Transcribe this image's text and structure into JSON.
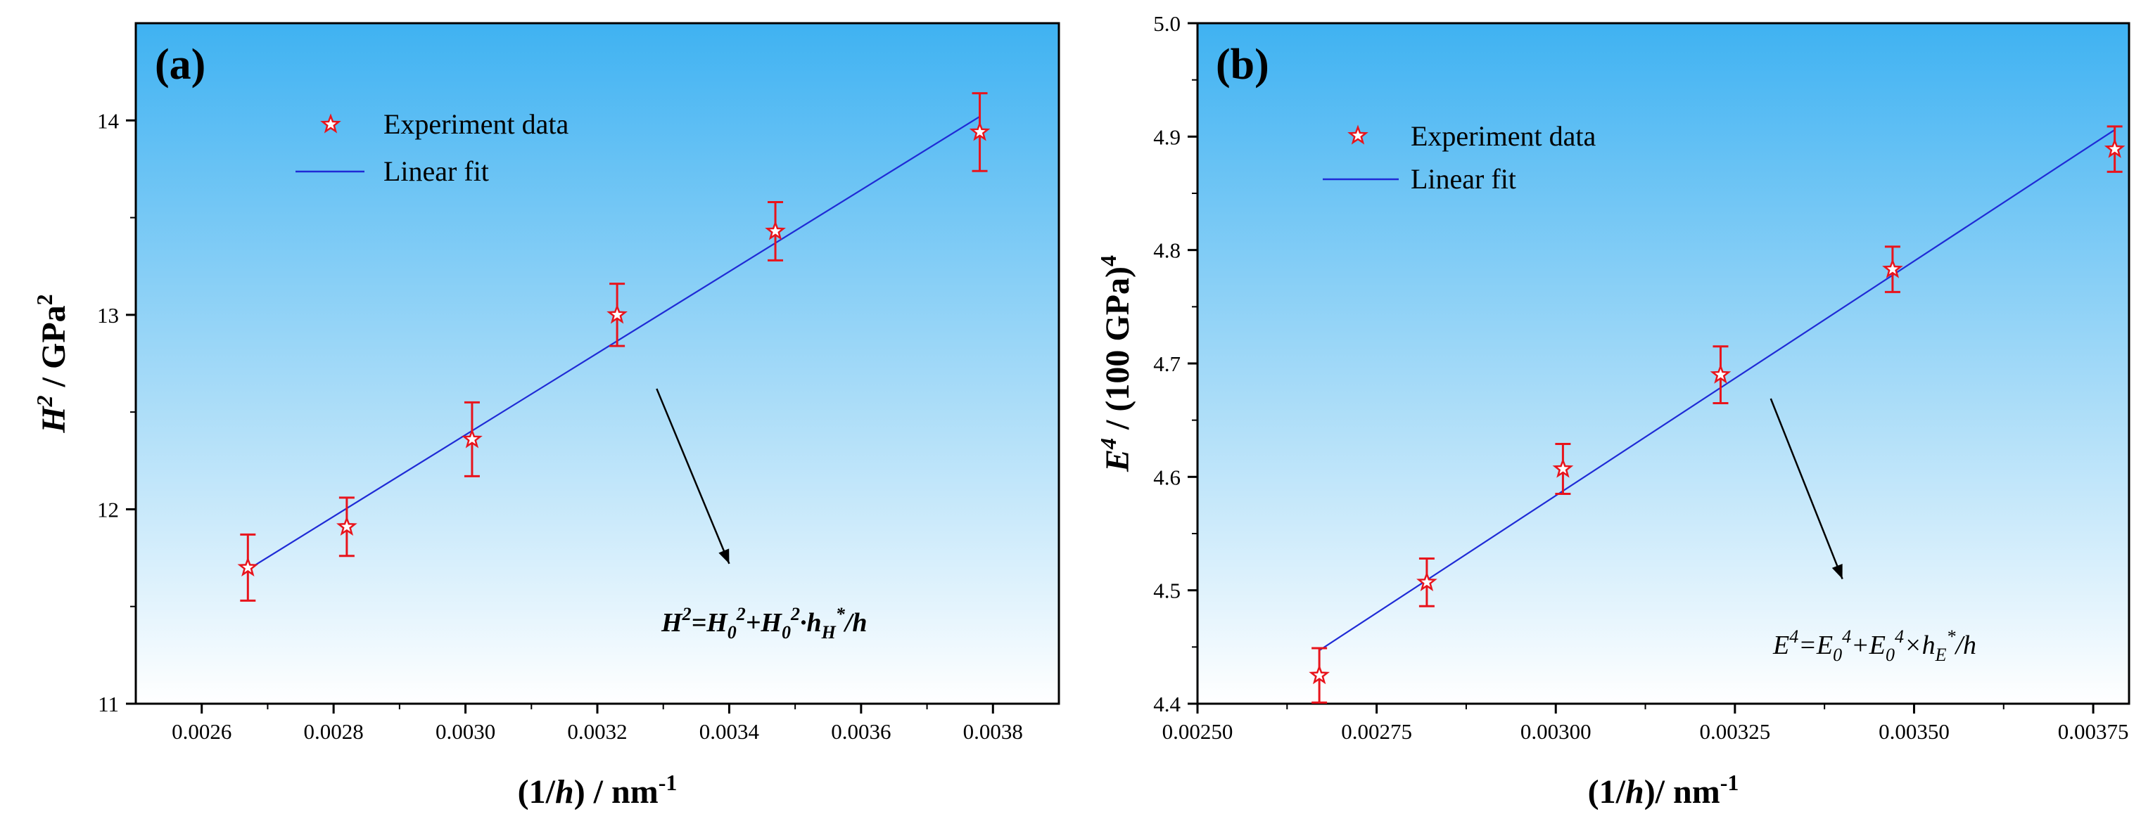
{
  "chart_data": [
    {
      "type": "scatter",
      "panel_label": "(a)",
      "ylabel": "H² / GPa²",
      "ylabel_parts": {
        "base": "H",
        "power": "2",
        "unit": " / GPa",
        "unit_power": "2"
      },
      "xlabel": "(1/h) / nm⁻¹",
      "xlabel_parts": {
        "open": "(1/",
        "var": "h",
        "close": ") / nm",
        "power": "-1"
      },
      "xlim": [
        0.0025,
        0.0039
      ],
      "ylim": [
        11,
        14.5
      ],
      "xticks": [
        0.0026,
        0.0028,
        0.003,
        0.0032,
        0.0034,
        0.0036,
        0.0038
      ],
      "xtick_labels": [
        "0.0026",
        "0.0028",
        "0.0030",
        "0.0032",
        "0.0034",
        "0.0036",
        "0.0038"
      ],
      "yticks": [
        11,
        12,
        13,
        14
      ],
      "ytick_labels": [
        "11",
        "12",
        "13",
        "14"
      ],
      "series": [
        {
          "name": "Experiment data",
          "kind": "scatter",
          "color": "#e8141c",
          "x": [
            0.00267,
            0.00282,
            0.00301,
            0.00323,
            0.00347,
            0.00378
          ],
          "y": [
            11.7,
            11.91,
            12.36,
            13.0,
            13.43,
            13.94
          ],
          "yerr": [
            0.17,
            0.15,
            0.19,
            0.16,
            0.15,
            0.2
          ]
        },
        {
          "name": "Linear fit",
          "kind": "line",
          "color": "#1f2bd6",
          "x": [
            0.00267,
            0.00378
          ],
          "y": [
            11.69,
            14.02
          ]
        }
      ],
      "legend": {
        "position": "top-left",
        "entries": [
          "Experiment data",
          "Linear fit"
        ]
      },
      "annotation": {
        "text": "H²=H₀²+H₀²·h_H*/h",
        "parts": {
          "a": "H",
          "a_pow": "2",
          "b": "=H",
          "b_sub": "0",
          "b_pow": "2",
          "c": "+H",
          "c_sub": "0",
          "c_pow": "2",
          "d": "·h",
          "d_sub": "H",
          "d_pow": "*",
          "e": "/h"
        },
        "arrow_from": [
          0.00329,
          12.62
        ],
        "arrow_to": [
          0.0034,
          11.72
        ]
      }
    },
    {
      "type": "scatter",
      "panel_label": "(b)",
      "ylabel": "E⁴ / (100 GPa)⁴",
      "ylabel_parts": {
        "base": "E",
        "power": "4",
        "unit": " / (100 GPa)",
        "unit_power": "4"
      },
      "xlabel": "(1/h)/ nm⁻¹",
      "xlabel_parts": {
        "open": "(1/",
        "var": "h",
        "close": ")/ nm",
        "power": "-1"
      },
      "xlim": [
        0.0025,
        0.0038
      ],
      "ylim": [
        4.4,
        5.0
      ],
      "xticks": [
        0.0025,
        0.00275,
        0.003,
        0.00325,
        0.0035,
        0.00375
      ],
      "xtick_labels": [
        "0.00250",
        "0.00275",
        "0.00300",
        "0.00325",
        "0.00350",
        "0.00375"
      ],
      "yticks": [
        4.4,
        4.5,
        4.6,
        4.7,
        4.8,
        4.9,
        5.0
      ],
      "ytick_labels": [
        "4.4",
        "4.5",
        "4.6",
        "4.7",
        "4.8",
        "4.9",
        "5.0"
      ],
      "series": [
        {
          "name": "Experiment data",
          "kind": "scatter",
          "color": "#e8141c",
          "x": [
            0.00267,
            0.00282,
            0.00301,
            0.00323,
            0.00347,
            0.00378
          ],
          "y": [
            4.425,
            4.507,
            4.607,
            4.69,
            4.783,
            4.889
          ],
          "yerr": [
            0.024,
            0.021,
            0.022,
            0.025,
            0.02,
            0.02
          ]
        },
        {
          "name": "Linear fit",
          "kind": "line",
          "color": "#1f2bd6",
          "x": [
            0.00267,
            0.00378
          ],
          "y": [
            4.447,
            4.906
          ]
        }
      ],
      "legend": {
        "position": "top-left",
        "entries": [
          "Experiment data",
          "Linear fit"
        ]
      },
      "annotation": {
        "text": "E⁴=E₀⁴+E₀⁴×h_E*/h",
        "parts": {
          "a": "E",
          "a_pow": "4",
          "b": "=E",
          "b_sub": "0",
          "b_pow": "4",
          "c": "+E",
          "c_sub": "0",
          "c_pow": "4",
          "d": "×h",
          "d_sub": "E",
          "d_pow": "*",
          "e": "/h"
        },
        "arrow_from": [
          0.0033,
          4.669
        ],
        "arrow_to": [
          0.0034,
          4.51
        ]
      }
    }
  ]
}
